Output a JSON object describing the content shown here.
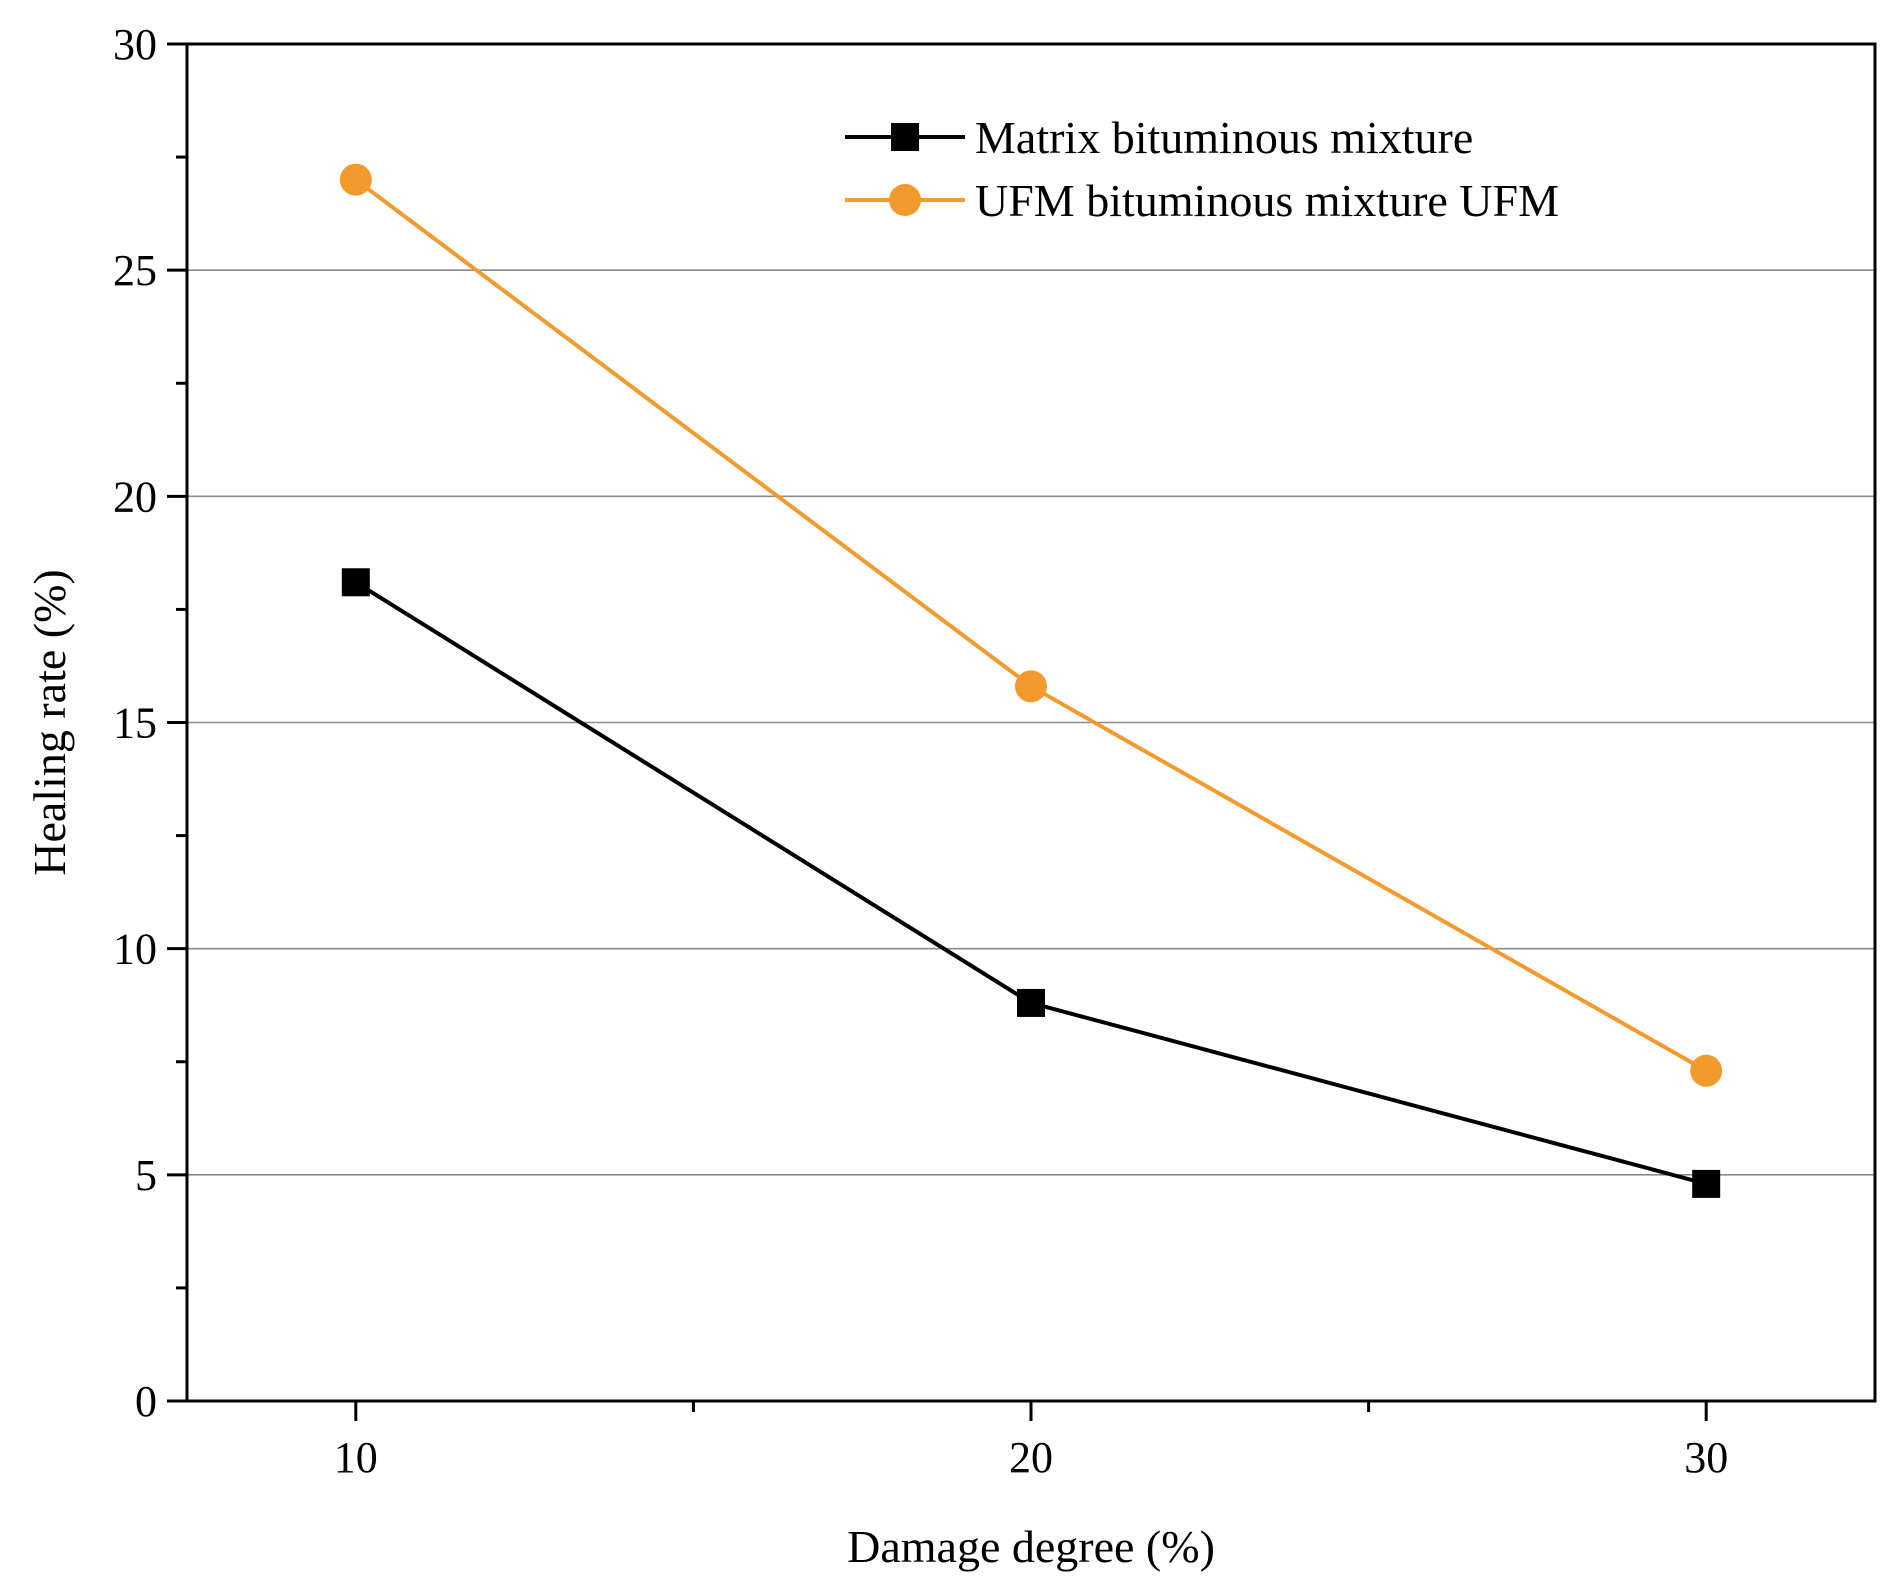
{
  "chart_data": {
    "type": "line",
    "title": "",
    "xlabel": "Damage degree (%)",
    "ylabel": "Healing rate (%)",
    "x": [
      10,
      20,
      30
    ],
    "xlim": [
      7.5,
      32.5
    ],
    "ylim": [
      0,
      30
    ],
    "x_ticks": [
      10,
      20,
      30
    ],
    "x_minor_ticks": [
      15,
      25
    ],
    "y_ticks": [
      0,
      5,
      10,
      15,
      20,
      25,
      30
    ],
    "y_minor_ticks": [
      2.5,
      7.5,
      12.5,
      17.5,
      22.5,
      27.5
    ],
    "y_gridlines": [
      5,
      10,
      15,
      20,
      25
    ],
    "grid": "horizontal",
    "legend_position": "top-right",
    "series": [
      {
        "name": "Matrix bituminous  mixture",
        "marker": "square",
        "color": "#000000",
        "values": [
          18.1,
          8.8,
          4.8
        ]
      },
      {
        "name": "UFM bituminous  mixture  UFM",
        "marker": "circle",
        "color": "#F39A2D",
        "values": [
          27.0,
          15.8,
          7.3
        ]
      }
    ]
  }
}
